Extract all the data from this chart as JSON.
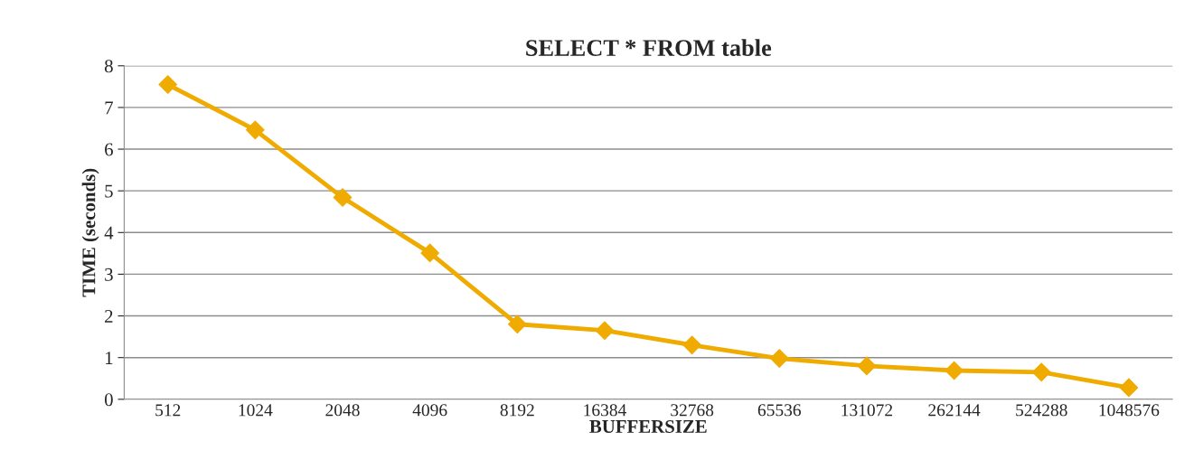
{
  "chart_data": {
    "type": "line",
    "title": "SELECT * FROM table",
    "xlabel": "BUFFERSIZE",
    "ylabel": "TIME (seconds)",
    "categories": [
      "512",
      "1024",
      "2048",
      "4096",
      "8192",
      "16384",
      "32768",
      "65536",
      "131072",
      "262144",
      "524288",
      "1048576"
    ],
    "series": [
      {
        "color": "#f0ab00",
        "values": [
          7.55,
          6.46,
          4.84,
          3.51,
          1.8,
          1.65,
          1.3,
          0.98,
          0.8,
          0.69,
          0.65,
          0.28
        ]
      }
    ],
    "ylim": [
      0,
      8
    ],
    "yticks": [
      0,
      1,
      2,
      3,
      4,
      5,
      6,
      7,
      8
    ],
    "grid": "y",
    "marker": "diamond",
    "line_style": "solid"
  }
}
